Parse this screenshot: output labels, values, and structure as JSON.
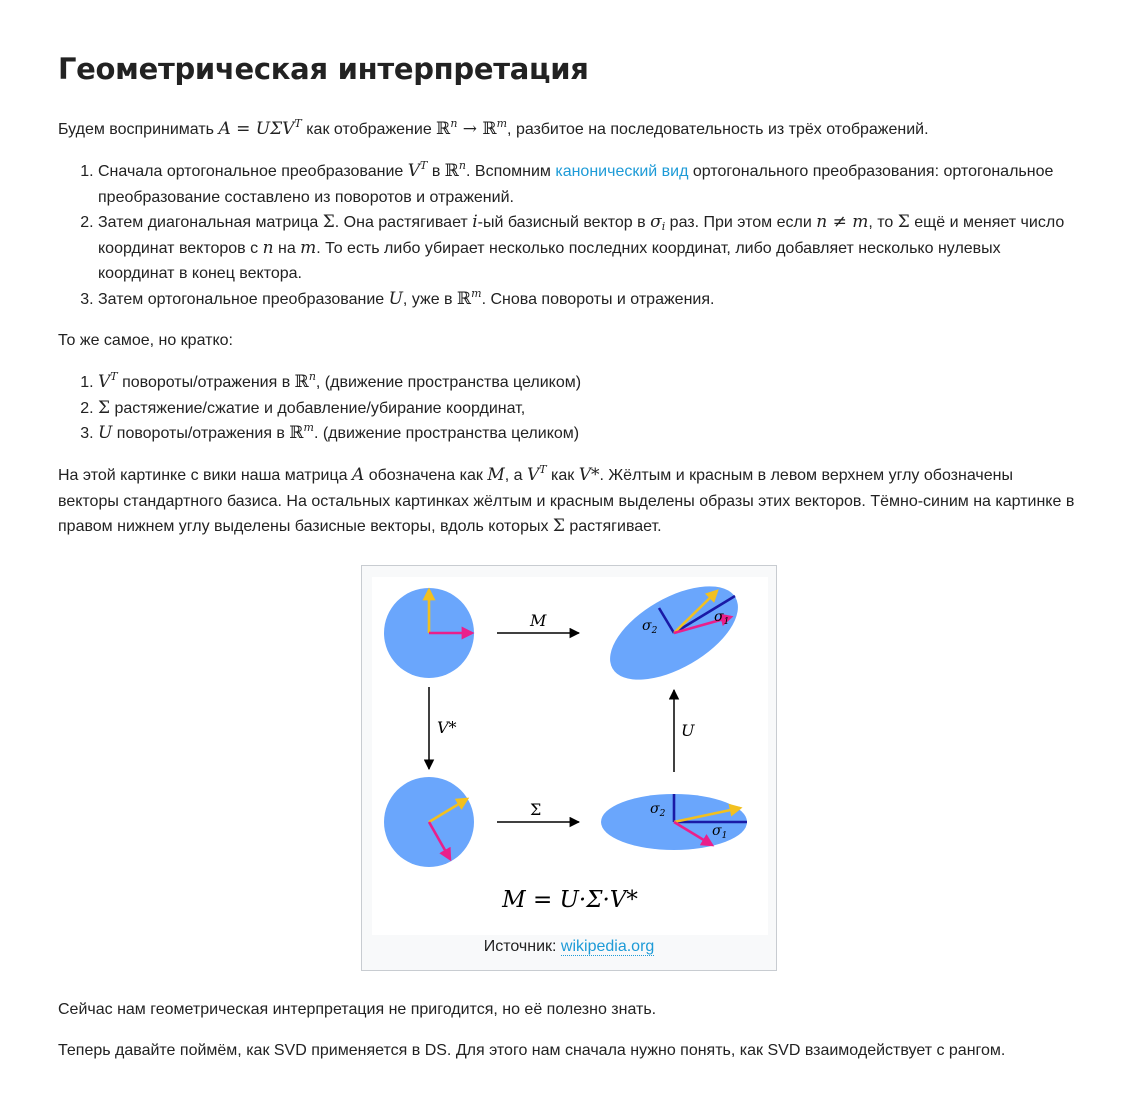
{
  "title": "Геометрическая интерпретация",
  "intro": {
    "t1": "Будем воспринимать ",
    "eq": "A = UΣV",
    "eq_sup": "T",
    "t2": " как отображение ",
    "rn": "ℝ",
    "n": "n",
    "arrow": " → ",
    "rm": "ℝ",
    "m": "m",
    "t3": ", разбитое на последовательность из трёх отображений."
  },
  "steps": [
    {
      "a": "Сначала ортогональное преобразование ",
      "v": "V",
      "vsup": "T",
      "b": " в ",
      "r": "ℝ",
      "rsup": "n",
      "c": ". Вспомним ",
      "link": "канонический вид",
      "d": " ортогонального преобразования: ортогональное преобразование составлено из поворотов и отражений."
    },
    {
      "a": "Затем диагональная матрица ",
      "sigma": "Σ",
      "b": ". Она растягивает ",
      "i": "i",
      "c": "-ый базисный вектор в ",
      "s": "σ",
      "ssub": "i",
      "d": " раз. При этом если ",
      "neq": "n ≠ m",
      "e": ", то ",
      "sigma2": "Σ",
      "f": " ещё и меняет число координат векторов с ",
      "n": "n",
      "g": " на ",
      "m": "m",
      "h": ". То есть либо убирает несколько последних координат, либо добавляет несколько нулевых координат в конец вектора."
    },
    {
      "a": "Затем ортогональное преобразование ",
      "u": "U",
      "b": ", уже в ",
      "r": "ℝ",
      "rsup": "m",
      "c": ". Снова повороты и отражения."
    }
  ],
  "short_label": "То же самое, но кратко:",
  "short": [
    {
      "sym": "V",
      "sup": "T",
      "a": " повороты/отражения в ",
      "r": "ℝ",
      "rsup": "n",
      "b": ", (движение пространства целиком)"
    },
    {
      "sym": "Σ",
      "a": " растяжение/сжатие и добавление/убирание координат,"
    },
    {
      "sym": "U",
      "a": " повороты/отражения в ",
      "r": "ℝ",
      "rsup": "m",
      "b": ". (движение пространства целиком)"
    }
  ],
  "wiki": {
    "a": "На этой картинке с вики наша матрица ",
    "A": "A",
    "b": " обозначена как ",
    "M": "M",
    "c": ", а ",
    "V": "V",
    "Vsup": "T",
    "d": " как ",
    "Vstar": "V*",
    "e": ". Жёлтым и красным в левом верхнем углу обозначены векторы стандартного базиса. На остальных картинках жёлтым и красным выделены образы этих векторов. Тёмно-синим на картинке в правом нижнем углу выделены базисные векторы, вдоль которых ",
    "S": "Σ",
    "f": " растягивает."
  },
  "figure": {
    "label_M": "M",
    "label_Vstar": "V*",
    "label_Sigma": "Σ",
    "label_U": "U",
    "s1": "σ",
    "s1sub": "1",
    "s2": "σ",
    "s2sub": "2",
    "formula": "M = U·Σ·V*",
    "caption_prefix": "Источник: ",
    "caption_link": "wikipedia.org",
    "colors": {
      "disk": "#6aa6fc",
      "yellow": "#f2c01f",
      "red": "#ea1f8b",
      "navy": "#1a1aa6"
    }
  },
  "p_after1": "Сейчас нам геометрическая интерпретация не пригодится, но её полезно знать.",
  "p_after2": "Теперь давайте поймём, как SVD применяется в DS. Для этого нам сначала нужно понять, как SVD взаимодействует с рангом."
}
